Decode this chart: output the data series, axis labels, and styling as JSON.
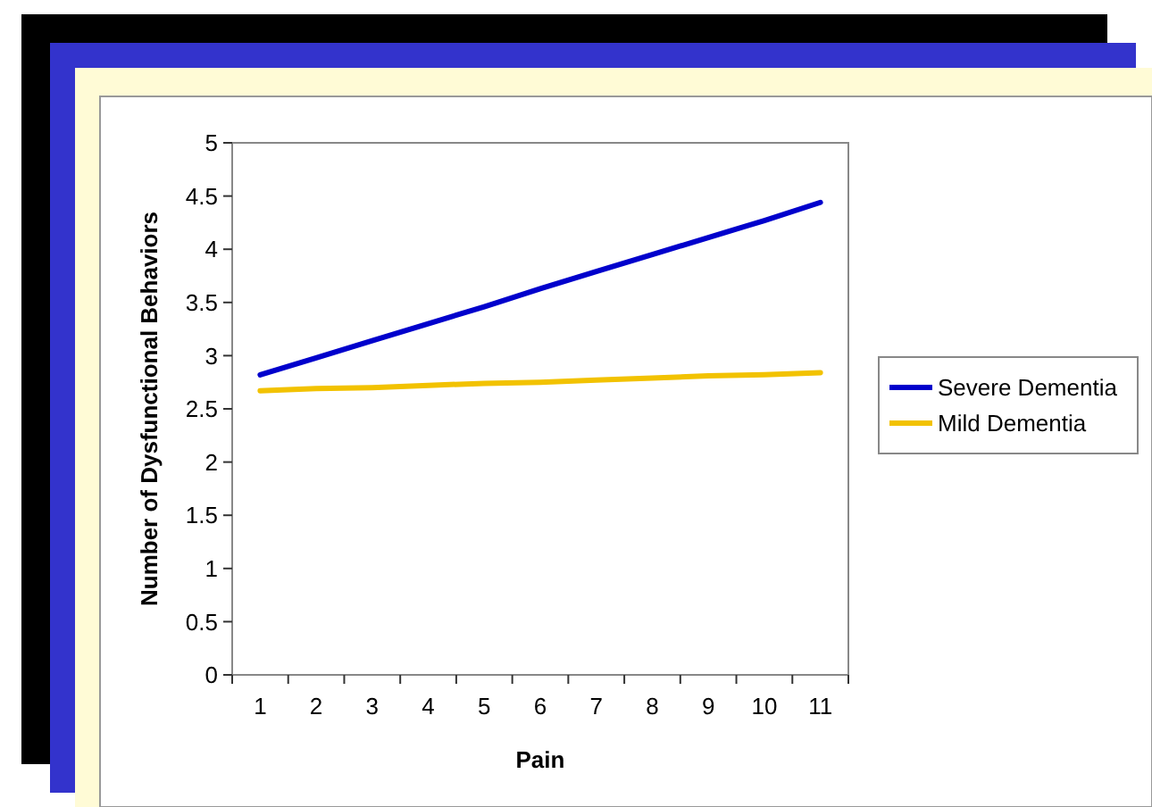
{
  "chart_data": {
    "type": "line",
    "xlabel": "Pain",
    "ylabel": "Number of Dysfunctional Behaviors",
    "categories": [
      "1",
      "2",
      "3",
      "4",
      "5",
      "6",
      "7",
      "8",
      "9",
      "10",
      "11"
    ],
    "series": [
      {
        "name": "Severe Dementia",
        "color": "#0000cc",
        "values": [
          2.82,
          2.98,
          3.14,
          3.3,
          3.46,
          3.63,
          3.79,
          3.95,
          4.11,
          4.27,
          4.44
        ]
      },
      {
        "name": "Mild Dementia",
        "color": "#f2c200",
        "values": [
          2.67,
          2.69,
          2.7,
          2.72,
          2.74,
          2.75,
          2.77,
          2.79,
          2.81,
          2.82,
          2.84
        ]
      }
    ],
    "ylim": [
      0,
      5
    ],
    "yticks": [
      0,
      0.5,
      1,
      1.5,
      2,
      2.5,
      3,
      3.5,
      4,
      4.5,
      5
    ],
    "grid": false,
    "legend": "right",
    "marker": "none",
    "line_style": "solid"
  }
}
